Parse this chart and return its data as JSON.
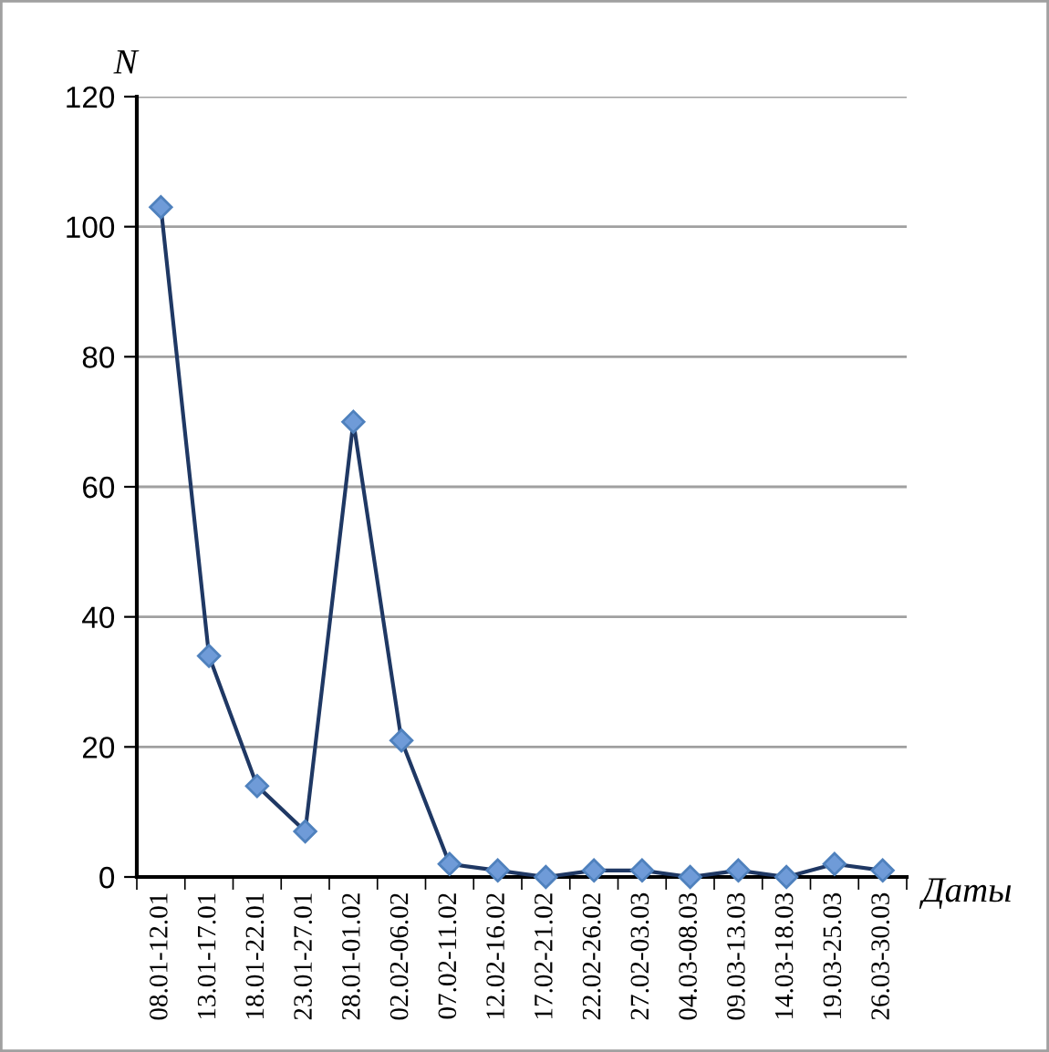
{
  "chart_data": {
    "type": "line",
    "categories": [
      "08.01-12.01",
      "13.01-17.01",
      "18.01-22.01",
      "23.01-27.01",
      "28.01-01.02",
      "02.02-06.02",
      "07.02-11.02",
      "12.02-16.02",
      "17.02-21.02",
      "22.02-26.02",
      "27.02-03.03",
      "04.03-08.03",
      "09.03-13.03",
      "14.03-18.03",
      "19.03-25.03",
      "26.03-30.03"
    ],
    "series": [
      {
        "color": "#1f3864",
        "values": [
          103,
          34,
          14,
          7,
          70,
          21,
          2,
          1,
          0,
          1,
          1,
          0,
          1,
          0,
          2,
          1
        ]
      }
    ],
    "xlabel": "Даты",
    "ylabel": "N",
    "ylim": [
      0,
      120
    ],
    "yticks": [
      0,
      20,
      40,
      60,
      80,
      100,
      120
    ],
    "grid": "y",
    "marker": "diamond",
    "line_style": "solid"
  }
}
